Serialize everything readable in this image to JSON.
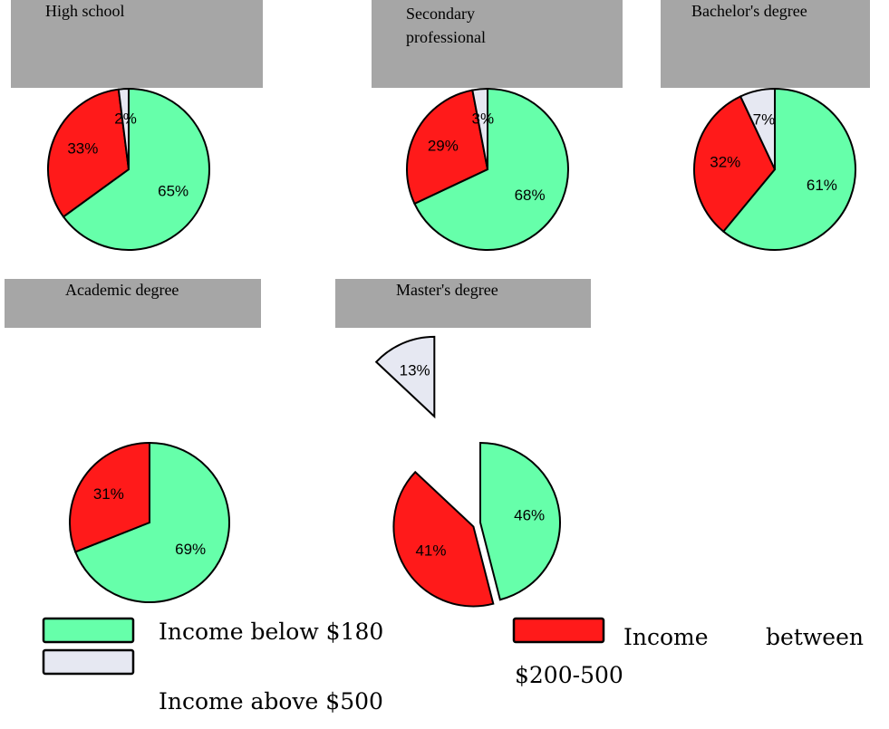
{
  "chart_data": [
    {
      "type": "pie",
      "title": "High school",
      "values": [
        65,
        33,
        2
      ],
      "value_labels": [
        "65%",
        "33%",
        "2%"
      ]
    },
    {
      "type": "pie",
      "title": "Secondary professional",
      "values": [
        68,
        29,
        3
      ],
      "value_labels": [
        "68%",
        "29%",
        "3%"
      ]
    },
    {
      "type": "pie",
      "title": "Bachelor's degree",
      "values": [
        61,
        32,
        7
      ],
      "value_labels": [
        "61%",
        "32%",
        "7%"
      ]
    },
    {
      "type": "pie",
      "title": "Academic degree",
      "values": [
        69,
        31
      ],
      "value_labels": [
        "69%",
        "31%"
      ]
    },
    {
      "type": "pie",
      "title": "Master's degree",
      "values": [
        46,
        41,
        13
      ],
      "value_labels": [
        "46%",
        "41%",
        "13%"
      ],
      "explode": [
        0,
        0.1,
        1.45
      ]
    }
  ],
  "legend": [
    {
      "name": "Income below $180",
      "color": "#66ffaa"
    },
    {
      "name": "Income between $200-500",
      "color": "#ff1a1a"
    },
    {
      "name": "Income above $500",
      "color": "#e6e8f2"
    }
  ]
}
